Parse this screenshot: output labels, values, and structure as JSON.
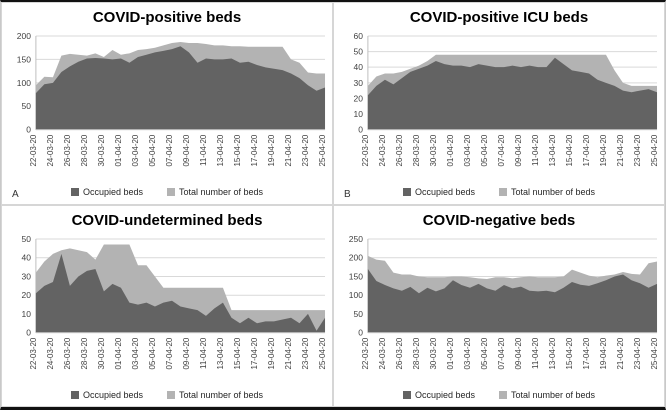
{
  "figure": {
    "panel_labels": [
      "A",
      "B",
      "",
      ""
    ],
    "legend_labels": {
      "occupied": "Occupied beds",
      "total": "Total number of beds"
    }
  },
  "colors": {
    "occupied_area": "#636363",
    "total_area": "#b3b3b3",
    "gridline": "#d9d9d9",
    "axis_line": "#bfbfbf",
    "axis_text": "#404040",
    "title_text": "#000000",
    "figure_border": "#111111"
  },
  "chart_data": [
    {
      "type": "area",
      "title": "COVID-positive beds",
      "panel_label": "A",
      "xlabel": "",
      "ylabel": "",
      "ylim": [
        0,
        200
      ],
      "ytick_step": 50,
      "yticks": [
        0,
        50,
        100,
        150,
        200
      ],
      "grid": true,
      "legend_position": "bottom",
      "xtick_every": 2,
      "categories": [
        "22-03-20",
        "23-03-20",
        "24-03-20",
        "25-03-20",
        "26-03-20",
        "27-03-20",
        "28-03-20",
        "29-03-20",
        "30-03-20",
        "31-03-20",
        "01-04-20",
        "02-04-20",
        "03-04-20",
        "04-04-20",
        "05-04-20",
        "06-04-20",
        "07-04-20",
        "08-04-20",
        "09-04-20",
        "10-04-20",
        "11-04-20",
        "12-04-20",
        "13-04-20",
        "14-04-20",
        "15-04-20",
        "16-04-20",
        "17-04-20",
        "18-04-20",
        "19-04-20",
        "20-04-20",
        "21-04-20",
        "22-04-20",
        "23-04-20",
        "24-04-20",
        "25-04-20"
      ],
      "series": [
        {
          "name": "Occupied beds",
          "color": "#636363",
          "values": [
            78,
            97,
            100,
            123,
            135,
            145,
            152,
            153,
            152,
            150,
            152,
            143,
            155,
            160,
            165,
            168,
            172,
            178,
            165,
            143,
            152,
            150,
            150,
            152,
            143,
            145,
            138,
            133,
            130,
            127,
            120,
            110,
            95,
            83,
            90
          ]
        },
        {
          "name": "Total number of beds",
          "color": "#b3b3b3",
          "values": [
            95,
            113,
            112,
            158,
            162,
            160,
            158,
            163,
            155,
            170,
            160,
            163,
            170,
            172,
            175,
            180,
            185,
            187,
            185,
            185,
            183,
            180,
            180,
            178,
            178,
            177,
            177,
            177,
            177,
            177,
            150,
            143,
            122,
            120,
            120
          ]
        }
      ]
    },
    {
      "type": "area",
      "title": "COVID-positive ICU beds",
      "panel_label": "B",
      "xlabel": "",
      "ylabel": "",
      "ylim": [
        0,
        60
      ],
      "ytick_step": 10,
      "yticks": [
        0,
        10,
        20,
        30,
        40,
        50,
        60
      ],
      "grid": true,
      "legend_position": "bottom",
      "xtick_every": 2,
      "categories": [
        "22-03-20",
        "23-03-20",
        "24-03-20",
        "25-03-20",
        "26-03-20",
        "27-03-20",
        "28-03-20",
        "29-03-20",
        "30-03-20",
        "31-03-20",
        "01-04-20",
        "02-04-20",
        "03-04-20",
        "04-04-20",
        "05-04-20",
        "06-04-20",
        "07-04-20",
        "08-04-20",
        "09-04-20",
        "10-04-20",
        "11-04-20",
        "12-04-20",
        "13-04-20",
        "14-04-20",
        "15-04-20",
        "16-04-20",
        "17-04-20",
        "18-04-20",
        "19-04-20",
        "20-04-20",
        "21-04-20",
        "22-04-20",
        "23-04-20",
        "24-04-20",
        "25-04-20"
      ],
      "series": [
        {
          "name": "Occupied beds",
          "color": "#636363",
          "values": [
            22,
            28,
            32,
            29,
            33,
            37,
            39,
            41,
            44,
            42,
            41,
            41,
            40,
            42,
            41,
            40,
            40,
            41,
            40,
            41,
            40,
            40,
            46,
            42,
            38,
            37,
            36,
            32,
            30,
            28,
            25,
            24,
            25,
            26,
            24
          ]
        },
        {
          "name": "Total number of beds",
          "color": "#b3b3b3",
          "values": [
            28,
            34,
            36,
            36,
            37,
            39,
            41,
            44,
            48,
            48,
            48,
            48,
            48,
            48,
            48,
            48,
            48,
            48,
            48,
            48,
            48,
            48,
            48,
            48,
            48,
            48,
            48,
            48,
            48,
            38,
            30,
            28,
            28,
            28,
            28
          ]
        }
      ]
    },
    {
      "type": "area",
      "title": "COVID-undetermined beds",
      "panel_label": "",
      "xlabel": "",
      "ylabel": "",
      "ylim": [
        0,
        50
      ],
      "ytick_step": 10,
      "yticks": [
        0,
        10,
        20,
        30,
        40,
        50
      ],
      "grid": true,
      "legend_position": "bottom",
      "xtick_every": 2,
      "categories": [
        "22-03-20",
        "23-03-20",
        "24-03-20",
        "25-03-20",
        "26-03-20",
        "27-03-20",
        "28-03-20",
        "29-03-20",
        "30-03-20",
        "31-03-20",
        "01-04-20",
        "02-04-20",
        "03-04-20",
        "04-04-20",
        "05-04-20",
        "06-04-20",
        "07-04-20",
        "08-04-20",
        "09-04-20",
        "10-04-20",
        "11-04-20",
        "12-04-20",
        "13-04-20",
        "14-04-20",
        "15-04-20",
        "16-04-20",
        "17-04-20",
        "18-04-20",
        "19-04-20",
        "20-04-20",
        "21-04-20",
        "22-04-20",
        "23-04-20",
        "24-04-20",
        "25-04-20"
      ],
      "series": [
        {
          "name": "Occupied beds",
          "color": "#636363",
          "values": [
            21,
            25,
            27,
            42,
            25,
            30,
            33,
            34,
            22,
            26,
            24,
            16,
            15,
            16,
            14,
            16,
            17,
            14,
            13,
            12,
            9,
            13,
            16,
            8,
            5,
            8,
            5,
            6,
            6,
            7,
            8,
            5,
            10,
            1,
            8
          ]
        },
        {
          "name": "Total number of beds",
          "color": "#b3b3b3",
          "values": [
            32,
            38,
            42,
            44,
            45,
            44,
            43,
            39,
            47,
            47,
            47,
            47,
            36,
            36,
            30,
            24,
            24,
            24,
            24,
            24,
            24,
            24,
            24,
            12,
            12,
            12,
            12,
            12,
            12,
            12,
            12,
            12,
            12,
            12,
            12
          ]
        }
      ]
    },
    {
      "type": "area",
      "title": "COVID-negative beds",
      "panel_label": "",
      "xlabel": "",
      "ylabel": "",
      "ylim": [
        0,
        250
      ],
      "ytick_step": 50,
      "yticks": [
        0,
        50,
        100,
        150,
        200,
        250
      ],
      "grid": true,
      "legend_position": "bottom",
      "xtick_every": 2,
      "categories": [
        "22-03-20",
        "23-03-20",
        "24-03-20",
        "25-03-20",
        "26-03-20",
        "27-03-20",
        "28-03-20",
        "29-03-20",
        "30-03-20",
        "31-03-20",
        "01-04-20",
        "02-04-20",
        "03-04-20",
        "04-04-20",
        "05-04-20",
        "06-04-20",
        "07-04-20",
        "08-04-20",
        "09-04-20",
        "10-04-20",
        "11-04-20",
        "12-04-20",
        "13-04-20",
        "14-04-20",
        "15-04-20",
        "16-04-20",
        "17-04-20",
        "18-04-20",
        "19-04-20",
        "20-04-20",
        "21-04-20",
        "22-04-20",
        "23-04-20",
        "24-04-20",
        "25-04-20"
      ],
      "series": [
        {
          "name": "Occupied beds",
          "color": "#636363",
          "values": [
            170,
            138,
            127,
            118,
            112,
            122,
            105,
            120,
            110,
            118,
            140,
            127,
            120,
            130,
            118,
            112,
            127,
            118,
            123,
            112,
            110,
            112,
            108,
            120,
            135,
            128,
            125,
            132,
            140,
            150,
            155,
            140,
            132,
            120,
            130
          ]
        },
        {
          "name": "Total number of beds",
          "color": "#b3b3b3",
          "values": [
            205,
            195,
            192,
            160,
            155,
            155,
            150,
            148,
            148,
            148,
            150,
            150,
            148,
            145,
            143,
            148,
            148,
            145,
            148,
            150,
            148,
            148,
            148,
            150,
            168,
            160,
            152,
            148,
            152,
            155,
            162,
            157,
            155,
            185,
            190
          ]
        }
      ]
    }
  ]
}
